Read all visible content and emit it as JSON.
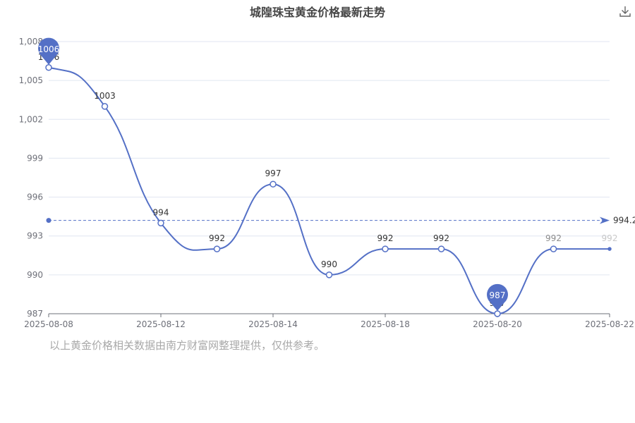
{
  "title": "城隍珠宝黄金价格最新走势",
  "footnote": "以上黄金价格相关数据由南方财富网整理提供，仅供参考。",
  "icons": {
    "download": "download-icon"
  },
  "colors": {
    "line": "#5470c6",
    "axis": "#6e7079",
    "grid": "#e0e6f1",
    "label": "#333333"
  },
  "chart_data": {
    "type": "line",
    "smooth": true,
    "x": [
      "2025-08-08",
      "2025-08-11",
      "2025-08-12",
      "2025-08-13",
      "2025-08-14",
      "2025-08-15",
      "2025-08-18",
      "2025-08-19",
      "2025-08-20",
      "2025-08-21",
      "2025-08-22"
    ],
    "x_tick_labels": [
      "2025-08-08",
      "2025-08-12",
      "2025-08-14",
      "2025-08-18",
      "2025-08-20",
      "2025-08-22"
    ],
    "values": [
      1006,
      1003,
      994,
      992,
      997,
      990,
      992,
      992,
      987,
      992,
      992
    ],
    "ylim": [
      987,
      1008
    ],
    "y_ticks": [
      987,
      990,
      993,
      996,
      999,
      1002,
      1005,
      1008
    ],
    "y_tick_labels": [
      "987",
      "990",
      "993",
      "996",
      "999",
      "1,002",
      "1,005",
      "1,008"
    ],
    "mark_points": [
      {
        "type": "max",
        "label": "1006",
        "value": 1006,
        "x": "2025-08-08"
      },
      {
        "type": "min",
        "label": "987",
        "value": 987,
        "x": "2025-08-20"
      }
    ],
    "mark_line": {
      "type": "average",
      "value": 994.2,
      "label": "994.2"
    },
    "grid": true,
    "legend": "none"
  }
}
